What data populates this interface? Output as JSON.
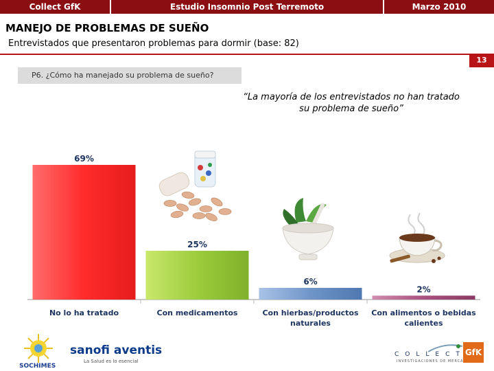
{
  "header": {
    "left": "Collect GfK",
    "center": "Estudio Insomnio Post Terremoto",
    "right": "Marzo 2010"
  },
  "title": "MANEJO DE PROBLEMAS DE SUEÑO",
  "subtitle": "Entrevistados que presentaron problemas para dormir (base: 82)",
  "page_number": "13",
  "question": "P6. ¿Cómo ha manejado su problema de sueño?",
  "quote": "“La mayoría de los entrevistados no han tratado su problema de sueño”",
  "logos": {
    "sochimes": "SOCHIMES",
    "sanofi": "sanofi aventis",
    "sanofi_tag": "La Salud es lo esencial",
    "collect": "COLLECT",
    "collect_sub": "INVESTIGACIONES DE MERCADO",
    "gfk": "GfK"
  },
  "chart_data": {
    "type": "bar",
    "categories": [
      "No lo ha tratado",
      "Con medicamentos",
      "Con hierbas/productos naturales",
      "Con alimentos o bebidas calientes"
    ],
    "category_lines": [
      [
        "No lo ha tratado"
      ],
      [
        "Con medicamentos"
      ],
      [
        "Con hierbas/productos",
        "naturales"
      ],
      [
        "Con alimentos o bebidas",
        "calientes"
      ]
    ],
    "values": [
      69,
      25,
      6,
      2
    ],
    "value_labels": [
      "69%",
      "25%",
      "6%",
      "2%"
    ],
    "ylim": [
      0,
      69
    ],
    "colors": [
      "#ff4444",
      "#9ccc3c",
      "#6f95c8",
      "#a8507e"
    ],
    "title": "",
    "xlabel": "",
    "ylabel": ""
  }
}
